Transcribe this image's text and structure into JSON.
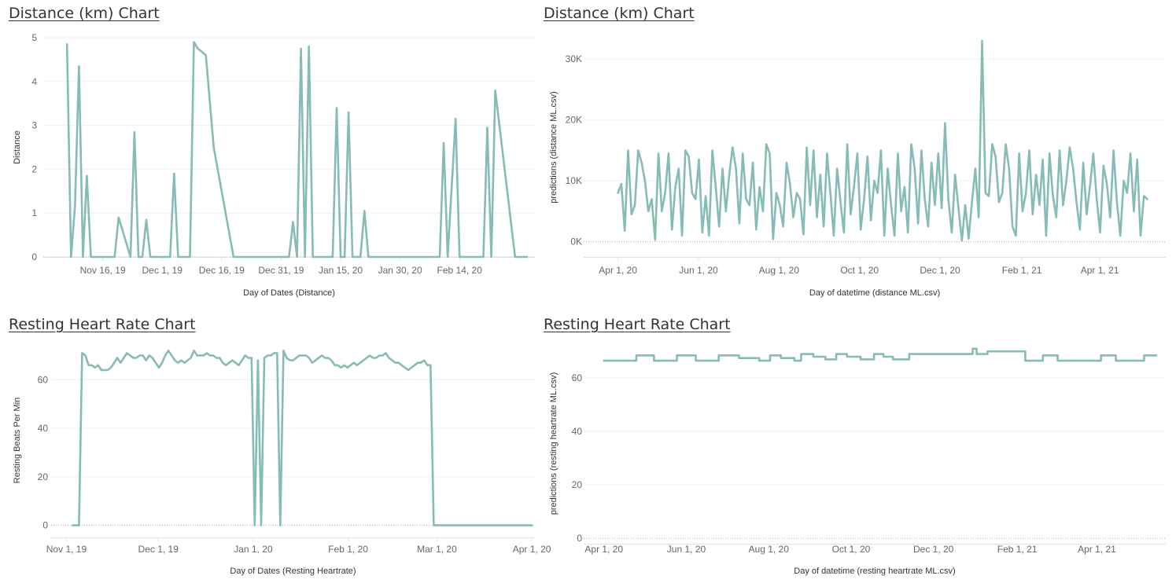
{
  "colors": {
    "line": "#86bcb6",
    "grid": "#f0f0f0",
    "zero_line": "#aaaaaa",
    "axis": "#e0e0e0",
    "text": "#333333",
    "tick_text": "#666666"
  },
  "panels": [
    {
      "title": "Distance (km) Chart"
    },
    {
      "title": "Distance (km) Chart"
    },
    {
      "title": "Resting Heart Rate Chart"
    },
    {
      "title": "Resting Heart Rate Chart"
    }
  ],
  "chart_data": [
    {
      "type": "line",
      "title": "Distance (km) Chart",
      "xlabel": "Day of Dates (Distance)",
      "ylabel": "Distance",
      "x_type": "date",
      "xlim": [
        "2019-11-01",
        "2020-03-04"
      ],
      "ylim": [
        0,
        5
      ],
      "yticks": [
        0,
        1,
        2,
        3,
        4,
        5
      ],
      "ytick_labels": [
        "0",
        "1",
        "2",
        "3",
        "4",
        "5"
      ],
      "xticks": [
        "2019-11-16",
        "2019-12-01",
        "2019-12-16",
        "2019-12-31",
        "2020-01-15",
        "2020-01-30",
        "2020-02-14"
      ],
      "xtick_labels": [
        "Nov 16, 19",
        "Dec 1, 19",
        "Dec 16, 19",
        "Dec 31, 19",
        "Jan 15, 20",
        "Jan 30, 20",
        "Feb 14, 20"
      ],
      "grid": true,
      "series": [
        {
          "x": [
            "2019-11-07",
            "2019-11-08",
            "2019-11-09",
            "2019-11-10",
            "2019-11-11",
            "2019-11-12",
            "2019-11-13",
            "2019-11-19",
            "2019-11-20",
            "2019-11-23",
            "2019-11-24",
            "2019-11-25",
            "2019-11-26",
            "2019-11-27",
            "2019-11-28",
            "2019-11-29",
            "2019-12-03",
            "2019-12-04",
            "2019-12-05",
            "2019-12-06",
            "2019-12-08",
            "2019-12-09",
            "2019-12-10",
            "2019-12-12",
            "2019-12-14",
            "2019-12-19",
            "2019-12-30",
            "2019-12-31",
            "2020-01-01",
            "2020-01-02",
            "2020-01-03",
            "2020-01-04",
            "2020-01-05",
            "2020-01-06",
            "2020-01-07",
            "2020-01-08",
            "2020-01-10",
            "2020-01-13",
            "2020-01-14",
            "2020-01-15",
            "2020-01-16",
            "2020-01-17",
            "2020-01-18",
            "2020-01-19",
            "2020-01-20",
            "2020-01-21",
            "2020-01-22",
            "2020-01-28",
            "2020-02-02",
            "2020-02-09",
            "2020-02-10",
            "2020-02-11",
            "2020-02-13",
            "2020-02-14",
            "2020-02-15",
            "2020-02-16",
            "2020-02-18",
            "2020-02-20",
            "2020-02-21",
            "2020-02-22",
            "2020-02-23",
            "2020-02-28",
            "2020-02-29",
            "2020-03-02"
          ],
          "values": [
            4.85,
            0,
            1.15,
            4.35,
            0,
            1.85,
            0,
            0,
            0.9,
            0,
            2.85,
            0,
            0,
            0.85,
            0,
            0,
            0,
            1.9,
            0,
            0,
            0,
            4.9,
            4.75,
            4.6,
            2.5,
            0,
            0,
            0,
            0,
            0,
            0.8,
            0,
            4.75,
            0,
            4.8,
            0,
            0,
            0,
            3.4,
            0,
            0,
            3.3,
            0,
            0,
            0,
            1.05,
            0,
            0,
            0,
            0,
            2.6,
            0,
            3.15,
            0,
            0,
            0,
            0,
            0,
            2.95,
            0,
            3.8,
            0,
            0,
            0
          ]
        }
      ]
    },
    {
      "type": "line",
      "title": "Distance (km) Chart",
      "xlabel": "Day of datetime (distance ML.csv)",
      "ylabel": "predictions (distance ML.csv)",
      "x_type": "date",
      "xlim": [
        "2020-03-06",
        "2021-05-21"
      ],
      "ylim": [
        -2500,
        33500
      ],
      "yticks": [
        0,
        10000,
        20000,
        30000
      ],
      "ytick_labels": [
        "0K",
        "10K",
        "20K",
        "30K"
      ],
      "xticks": [
        "2020-04-01",
        "2020-06-01",
        "2020-08-01",
        "2020-10-01",
        "2020-12-01",
        "2021-02-01",
        "2021-04-01"
      ],
      "xtick_labels": [
        "Apr 1, 20",
        "Jun 1, 20",
        "Aug 1, 20",
        "Oct 1, 20",
        "Dec 1, 20",
        "Feb 1, 21",
        "Apr 1, 21"
      ],
      "grid": true,
      "series": [
        {
          "x_start": "2020-04-01",
          "x_end": "2021-05-07",
          "values": [
            8000,
            9500,
            1800,
            15000,
            4500,
            6000,
            15000,
            13000,
            10000,
            5000,
            7000,
            300,
            14500,
            5000,
            8000,
            14500,
            2000,
            9000,
            12000,
            1000,
            15000,
            14000,
            8000,
            7000,
            13500,
            1500,
            7500,
            1000,
            15000,
            9000,
            2500,
            12000,
            5000,
            11000,
            15500,
            12000,
            3000,
            14500,
            7000,
            6000,
            13000,
            2000,
            9000,
            5000,
            16000,
            14500,
            400,
            8000,
            6000,
            2500,
            13000,
            9500,
            4000,
            8000,
            7000,
            1200,
            15500,
            6000,
            15000,
            4000,
            11000,
            2500,
            14500,
            8000,
            1000,
            12000,
            6500,
            1500,
            16000,
            4500,
            9000,
            14500,
            2000,
            7000,
            14000,
            3500,
            10000,
            8000,
            15000,
            1000,
            12000,
            6000,
            1000,
            14500,
            5000,
            9000,
            1500,
            16000,
            12000,
            3000,
            15000,
            7000,
            2500,
            13000,
            6000,
            14500,
            5500,
            19500,
            7000,
            1500,
            11000,
            5500,
            200,
            6000,
            500,
            6500,
            12000,
            4000,
            33000,
            8000,
            7500,
            16000,
            14000,
            6500,
            8000,
            16000,
            12000,
            2500,
            1000,
            14500,
            5000,
            8000,
            15000,
            4500,
            11000,
            6000,
            13500,
            1000,
            14500,
            7500,
            4000,
            15000,
            6000,
            10000,
            15500,
            12000,
            6500,
            2000,
            13000,
            4500,
            9000,
            14500,
            7000,
            1500,
            12500,
            9500,
            4000,
            15000,
            6500,
            1000,
            10000,
            8000,
            14500,
            5000,
            13500,
            1000,
            7500,
            7000
          ]
        }
      ]
    },
    {
      "type": "line",
      "title": "Resting Heart Rate Chart",
      "xlabel": "Day of Dates (Resting Heartrate)",
      "ylabel": "Resting Beats Per Min",
      "x_type": "date",
      "xlim": [
        "2019-10-27",
        "2020-04-02"
      ],
      "ylim": [
        -5,
        75
      ],
      "yticks": [
        0,
        20,
        40,
        60
      ],
      "ytick_labels": [
        "0",
        "20",
        "40",
        "60"
      ],
      "xticks": [
        "2019-11-01",
        "2019-12-01",
        "2020-01-01",
        "2020-02-01",
        "2020-03-01",
        "2020-04-01"
      ],
      "xtick_labels": [
        "Nov 1, 19",
        "Dec 1, 19",
        "Jan 1, 20",
        "Feb 1, 20",
        "Mar 1, 20",
        "Apr 1, 20"
      ],
      "grid": true,
      "series": [
        {
          "x_start": "2019-11-03",
          "x_end": "2020-03-01",
          "values": [
            0,
            0,
            0,
            71,
            70,
            66,
            66,
            65,
            66,
            64,
            64,
            64,
            65,
            67,
            69,
            67,
            69,
            71,
            70,
            69,
            69,
            70,
            70,
            68,
            70,
            69,
            67,
            65,
            67,
            70,
            72,
            70,
            68,
            67,
            68,
            67,
            68,
            69,
            72,
            70,
            70,
            70,
            71,
            70,
            70,
            69,
            69,
            67,
            66,
            67,
            68,
            67,
            66,
            68,
            70,
            69,
            69,
            0,
            68,
            0,
            69,
            70,
            70,
            71,
            71,
            0,
            72,
            69,
            68,
            68,
            69,
            70,
            70,
            70,
            69,
            67,
            68,
            69,
            70,
            69,
            69,
            68,
            66,
            66,
            65,
            66,
            65,
            66,
            67,
            66,
            67,
            68,
            69,
            70,
            69,
            69,
            70,
            70,
            71,
            69,
            68,
            67,
            67,
            66,
            65,
            64,
            65,
            66,
            67,
            67,
            68,
            66,
            66,
            0,
            0
          ]
        },
        {
          "x": [
            "2020-03-01",
            "2020-04-01"
          ],
          "values": [
            0,
            0
          ]
        }
      ]
    },
    {
      "type": "line",
      "title": "Resting Heart Rate Chart",
      "xlabel": "Day of datetime (resting heartrate ML.csv)",
      "ylabel": "predictions (resting heartrate ML.csv)",
      "x_type": "date",
      "xlim": [
        "2020-03-17",
        "2021-05-22"
      ],
      "ylim": [
        -2,
        73
      ],
      "yticks": [
        0,
        20,
        40,
        60
      ],
      "ytick_labels": [
        "0",
        "20",
        "40",
        "60"
      ],
      "xticks": [
        "2020-04-01",
        "2020-06-01",
        "2020-08-01",
        "2020-10-01",
        "2020-12-01",
        "2021-02-01",
        "2021-04-01"
      ],
      "xtick_labels": [
        "Apr 1, 20",
        "Jun 1, 20",
        "Aug 1, 20",
        "Oct 1, 20",
        "Dec 1, 20",
        "Feb 1, 21",
        "Apr 1, 21"
      ],
      "grid": true,
      "series": [
        {
          "step": true,
          "x": [
            "2020-04-01",
            "2020-04-25",
            "2020-05-08",
            "2020-05-25",
            "2020-06-08",
            "2020-06-25",
            "2020-07-10",
            "2020-07-25",
            "2020-08-02",
            "2020-08-10",
            "2020-08-20",
            "2020-08-25",
            "2020-09-03",
            "2020-09-12",
            "2020-09-20",
            "2020-09-28",
            "2020-10-08",
            "2020-10-18",
            "2020-10-25",
            "2020-11-01",
            "2020-11-13",
            "2020-11-25",
            "2020-12-30",
            "2021-01-02",
            "2021-01-10",
            "2021-01-29",
            "2021-02-07",
            "2021-02-20",
            "2021-03-03",
            "2021-03-13",
            "2021-04-04",
            "2021-04-15",
            "2021-05-06",
            "2021-05-15"
          ],
          "values": [
            66.5,
            68.5,
            66.5,
            68.5,
            66.5,
            68.5,
            67.5,
            66.5,
            68.5,
            67.5,
            66.5,
            69,
            68,
            67,
            69,
            68,
            67,
            69,
            68,
            67,
            69,
            69,
            71,
            69,
            70,
            70,
            66.5,
            68.5,
            66.5,
            66.5,
            68.5,
            66.5,
            68.5,
            68.5
          ]
        }
      ]
    }
  ]
}
